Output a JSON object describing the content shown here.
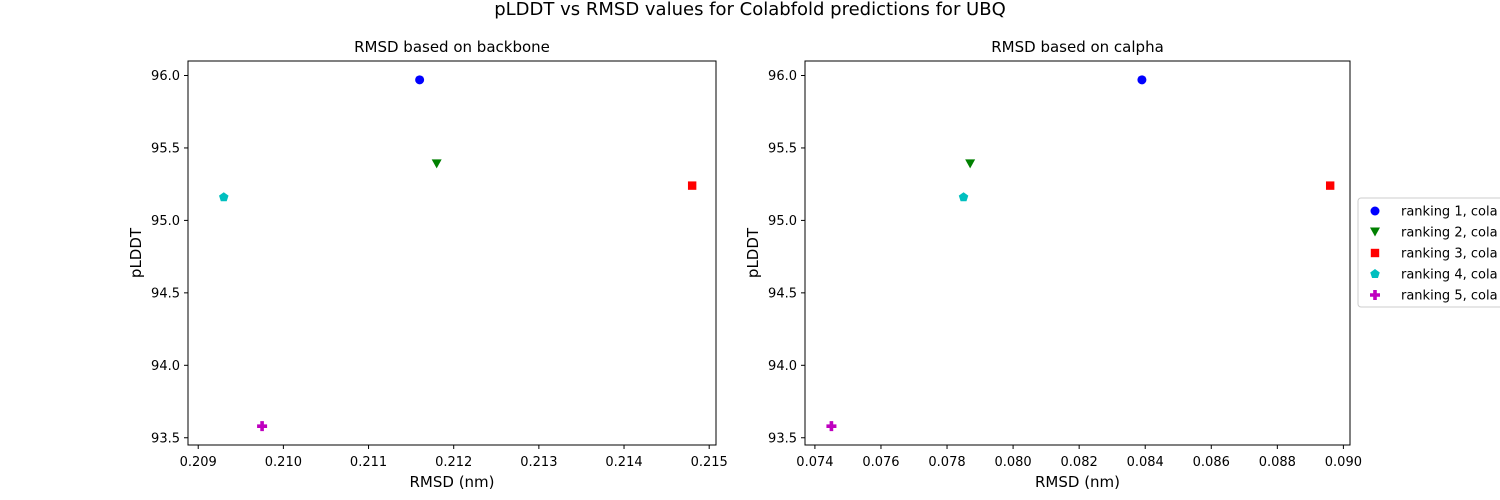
{
  "figure_title": "pLDDT vs RMSD values for Colabfold predictions for UBQ",
  "chart_data": [
    {
      "type": "scatter",
      "title": "RMSD based on backbone",
      "xlabel": "RMSD (nm)",
      "ylabel": "pLDDT",
      "xlim": [
        0.20888,
        0.21508
      ],
      "ylim": [
        93.45,
        96.1
      ],
      "xticks": [
        "0.209",
        "0.210",
        "0.211",
        "0.212",
        "0.213",
        "0.214",
        "0.215"
      ],
      "xtick_values": [
        0.209,
        0.21,
        0.211,
        0.212,
        0.213,
        0.214,
        0.215
      ],
      "yticks": [
        "93.5",
        "94.0",
        "94.5",
        "95.0",
        "95.5",
        "96.0"
      ],
      "ytick_values": [
        93.5,
        94.0,
        94.5,
        95.0,
        95.5,
        96.0
      ],
      "series": [
        {
          "x": [
            0.2116
          ],
          "y": [
            95.97
          ]
        },
        {
          "x": [
            0.2118
          ],
          "y": [
            95.39
          ]
        },
        {
          "x": [
            0.2148
          ],
          "y": [
            95.24
          ]
        },
        {
          "x": [
            0.2093
          ],
          "y": [
            95.16
          ]
        },
        {
          "x": [
            0.20975
          ],
          "y": [
            93.58
          ]
        }
      ]
    },
    {
      "type": "scatter",
      "title": "RMSD based on calpha",
      "xlabel": "RMSD (nm)",
      "ylabel": "pLDDT",
      "xlim": [
        0.0737,
        0.0902
      ],
      "ylim": [
        93.45,
        96.1
      ],
      "xticks": [
        "0.074",
        "0.076",
        "0.078",
        "0.080",
        "0.082",
        "0.084",
        "0.086",
        "0.088",
        "0.090"
      ],
      "xtick_values": [
        0.074,
        0.076,
        0.078,
        0.08,
        0.082,
        0.084,
        0.086,
        0.088,
        0.09
      ],
      "yticks": [
        "93.5",
        "94.0",
        "94.5",
        "95.0",
        "95.5",
        "96.0"
      ],
      "ytick_values": [
        93.5,
        94.0,
        94.5,
        95.0,
        95.5,
        96.0
      ],
      "series": [
        {
          "x": [
            0.0839
          ],
          "y": [
            95.97
          ]
        },
        {
          "x": [
            0.0787
          ],
          "y": [
            95.39
          ]
        },
        {
          "x": [
            0.0896
          ],
          "y": [
            95.24
          ]
        },
        {
          "x": [
            0.0785
          ],
          "y": [
            95.16
          ]
        },
        {
          "x": [
            0.0745
          ],
          "y": [
            93.58
          ]
        }
      ]
    }
  ],
  "legend": {
    "placement": "right, clipped at figure edge",
    "entries": [
      {
        "label": "ranking 1, cola",
        "marker": "circle",
        "color": "#0000ff"
      },
      {
        "label": "ranking 2, cola",
        "marker": "triangle-down",
        "color": "#008000"
      },
      {
        "label": "ranking 3, cola",
        "marker": "square",
        "color": "#ff0000"
      },
      {
        "label": "ranking 4, cola",
        "marker": "pentagon",
        "color": "#00bfbf"
      },
      {
        "label": "ranking 5, cola",
        "marker": "plus-filled",
        "color": "#bf00bf"
      }
    ]
  }
}
